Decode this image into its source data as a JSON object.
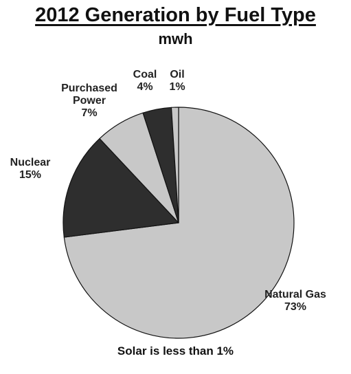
{
  "chart_data": {
    "type": "pie",
    "title": "2012 Generation by Fuel Type",
    "subtitle": "mwh",
    "footnote": "Solar is less than 1%",
    "slices": [
      {
        "name": "Natural Gas",
        "lines": [
          "Natural Gas",
          "73%"
        ],
        "value": 73,
        "color": "#c8c8c8"
      },
      {
        "name": "Nuclear",
        "lines": [
          "Nuclear",
          "15%"
        ],
        "value": 15,
        "color": "#2e2e2e"
      },
      {
        "name": "Purchased Power",
        "lines": [
          "Purchased",
          "Power",
          "7%"
        ],
        "value": 7,
        "color": "#c8c8c8"
      },
      {
        "name": "Coal",
        "lines": [
          "Coal",
          "4%"
        ],
        "value": 4,
        "color": "#2e2e2e"
      },
      {
        "name": "Oil",
        "lines": [
          "Oil",
          "1%"
        ],
        "value": 1,
        "color": "#c8c8c8"
      }
    ],
    "stroke_color": "#111111"
  }
}
